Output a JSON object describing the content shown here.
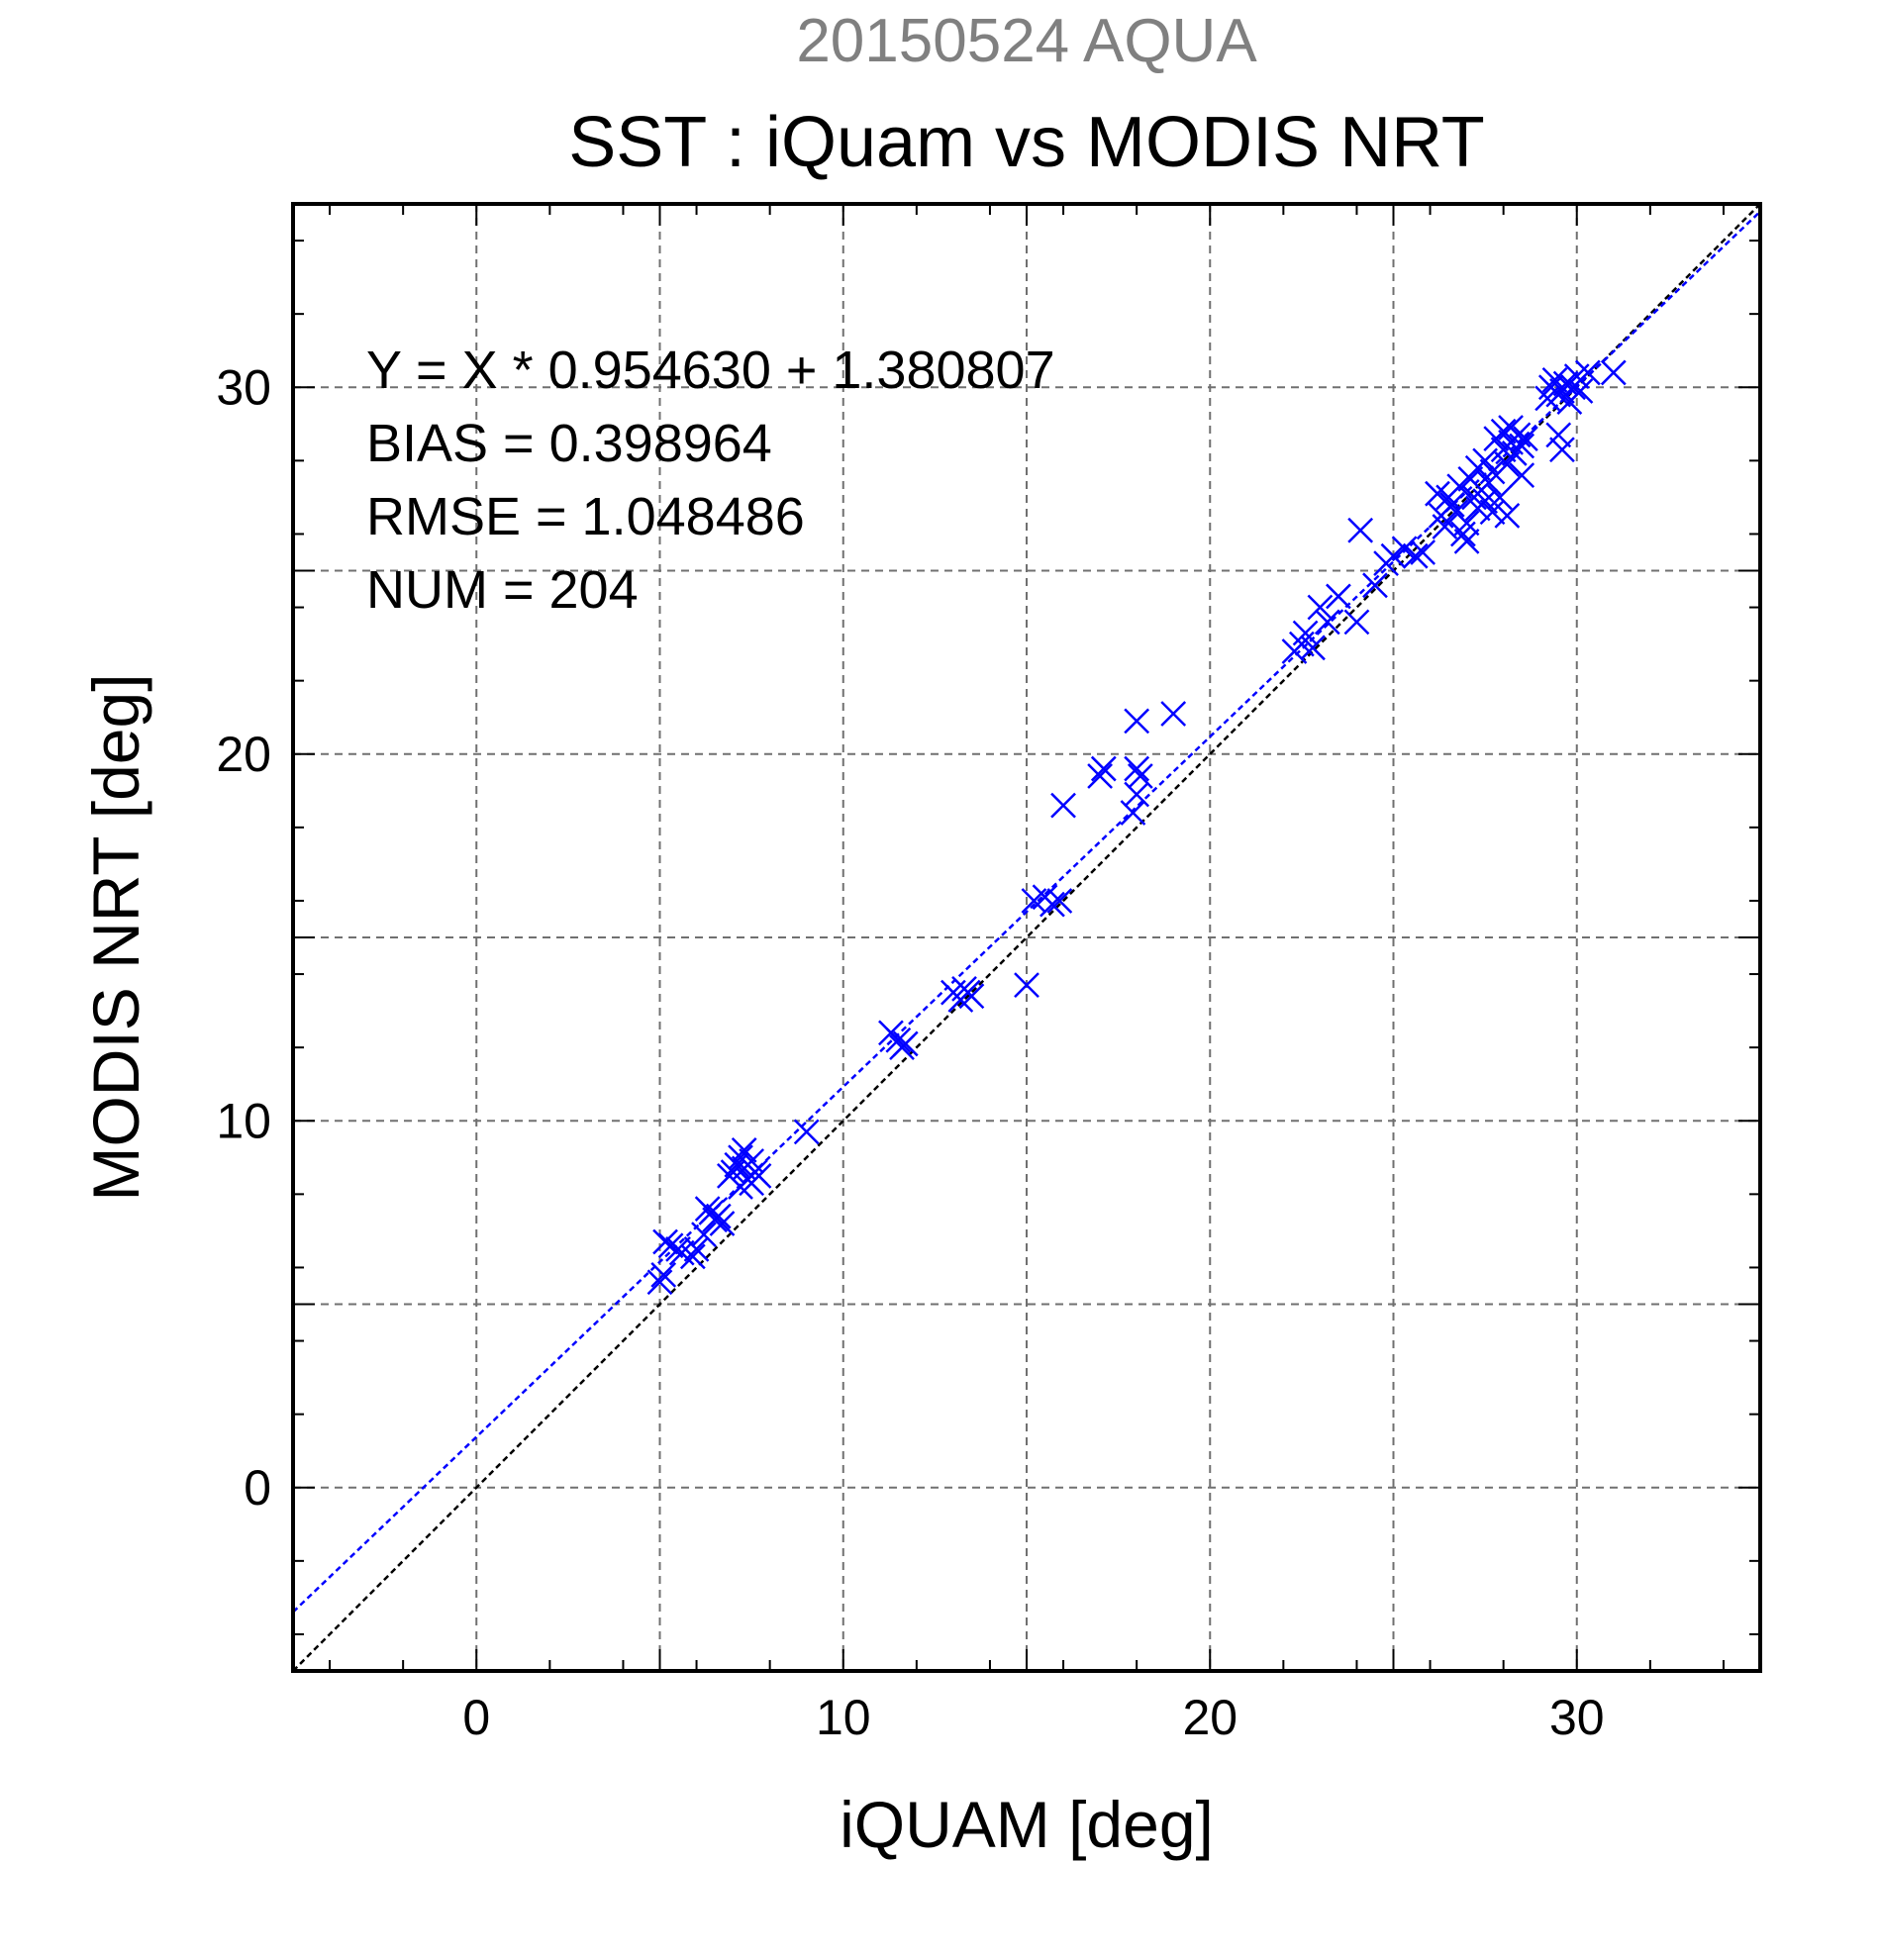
{
  "chart_data": {
    "type": "scatter",
    "supertitle": "20150524 AQUA",
    "title": "SST : iQuam vs MODIS NRT",
    "xlabel": "iQUAM [deg]",
    "ylabel": "MODIS NRT [deg]",
    "xlim": [
      -5,
      35
    ],
    "ylim": [
      -5,
      35
    ],
    "xticks": [
      "0",
      "10",
      "20",
      "30"
    ],
    "yticks": [
      "0",
      "10",
      "20",
      "30"
    ],
    "grid": true,
    "stats": {
      "equation": "Y = X * 0.954630 + 1.380807",
      "bias": "BIAS = 0.398964",
      "rmse": "RMSE = 1.048486",
      "num": "NUM = 204"
    },
    "fit": {
      "slope": 0.95463,
      "intercept": 1.380807,
      "color": "#0000ff"
    },
    "reference_line": {
      "slope": 1,
      "intercept": 0,
      "color": "#000000"
    },
    "marker_color": "#0000ff",
    "series": [
      {
        "points": [
          [
            5.0,
            5.6
          ],
          [
            5.1,
            5.8
          ],
          [
            5.15,
            6.7
          ],
          [
            5.3,
            6.6
          ],
          [
            5.5,
            6.5
          ],
          [
            5.6,
            6.4
          ],
          [
            5.9,
            6.3
          ],
          [
            6.0,
            6.5
          ],
          [
            6.2,
            6.9
          ],
          [
            6.3,
            7.6
          ],
          [
            6.4,
            7.5
          ],
          [
            6.5,
            7.3
          ],
          [
            6.6,
            7.4
          ],
          [
            6.7,
            7.2
          ],
          [
            6.9,
            8.5
          ],
          [
            7.0,
            8.6
          ],
          [
            7.1,
            8.8
          ],
          [
            7.2,
            9.0
          ],
          [
            7.3,
            8.7
          ],
          [
            7.4,
            8.4
          ],
          [
            7.5,
            8.9
          ],
          [
            7.6,
            8.6
          ],
          [
            7.7,
            8.5
          ],
          [
            7.3,
            9.2
          ],
          [
            7.5,
            8.3
          ],
          [
            7.2,
            8.2
          ],
          [
            9.0,
            9.7
          ],
          [
            11.3,
            12.4
          ],
          [
            11.5,
            12.2
          ],
          [
            11.6,
            12.0
          ],
          [
            11.7,
            12.1
          ],
          [
            13.0,
            13.5
          ],
          [
            13.2,
            13.3
          ],
          [
            13.3,
            13.6
          ],
          [
            13.5,
            13.4
          ],
          [
            13.4,
            13.5
          ],
          [
            15.0,
            13.7
          ],
          [
            15.2,
            16.0
          ],
          [
            15.5,
            16.1
          ],
          [
            15.7,
            15.9
          ],
          [
            15.9,
            16.0
          ],
          [
            16.0,
            18.6
          ],
          [
            17.0,
            19.4
          ],
          [
            17.1,
            19.6
          ],
          [
            17.9,
            18.4
          ],
          [
            18.0,
            18.9
          ],
          [
            18.0,
            19.6
          ],
          [
            18.1,
            19.4
          ],
          [
            18.0,
            20.9
          ],
          [
            19.0,
            21.1
          ],
          [
            22.3,
            22.8
          ],
          [
            22.5,
            23.0
          ],
          [
            22.6,
            23.3
          ],
          [
            22.8,
            22.9
          ],
          [
            23.0,
            24.0
          ],
          [
            23.2,
            23.6
          ],
          [
            23.5,
            24.3
          ],
          [
            24.0,
            23.6
          ],
          [
            24.1,
            26.1
          ],
          [
            24.5,
            24.6
          ],
          [
            24.8,
            25.2
          ],
          [
            25.0,
            25.4
          ],
          [
            25.3,
            25.6
          ],
          [
            25.6,
            25.4
          ],
          [
            25.8,
            25.5
          ],
          [
            26.2,
            27.1
          ],
          [
            26.3,
            26.5
          ],
          [
            26.4,
            26.2
          ],
          [
            26.5,
            27.0
          ],
          [
            26.6,
            26.8
          ],
          [
            26.7,
            26.6
          ],
          [
            26.8,
            27.3
          ],
          [
            26.9,
            26.0
          ],
          [
            27.0,
            25.8
          ],
          [
            27.0,
            26.3
          ],
          [
            27.1,
            27.5
          ],
          [
            27.2,
            27.0
          ],
          [
            27.3,
            26.7
          ],
          [
            27.3,
            27.8
          ],
          [
            27.4,
            27.2
          ],
          [
            27.5,
            26.9
          ],
          [
            27.5,
            28.0
          ],
          [
            27.6,
            27.4
          ],
          [
            27.7,
            26.6
          ],
          [
            27.7,
            27.7
          ],
          [
            27.8,
            28.6
          ],
          [
            27.9,
            27.0
          ],
          [
            28.0,
            28.3
          ],
          [
            28.0,
            28.8
          ],
          [
            28.1,
            26.5
          ],
          [
            28.1,
            27.9
          ],
          [
            28.2,
            28.5
          ],
          [
            28.2,
            28.9
          ],
          [
            28.3,
            28.2
          ],
          [
            28.4,
            28.7
          ],
          [
            28.5,
            28.4
          ],
          [
            28.5,
            27.6
          ],
          [
            28.6,
            28.6
          ],
          [
            29.2,
            29.7
          ],
          [
            29.3,
            30.0
          ],
          [
            29.4,
            30.2
          ],
          [
            29.5,
            29.8
          ],
          [
            29.5,
            28.7
          ],
          [
            29.6,
            28.3
          ],
          [
            29.6,
            29.9
          ],
          [
            29.7,
            30.1
          ],
          [
            29.8,
            29.6
          ],
          [
            29.9,
            30.0
          ],
          [
            30.0,
            30.3
          ],
          [
            30.1,
            29.9
          ],
          [
            30.3,
            30.4
          ],
          [
            31.0,
            30.4
          ]
        ]
      }
    ]
  }
}
